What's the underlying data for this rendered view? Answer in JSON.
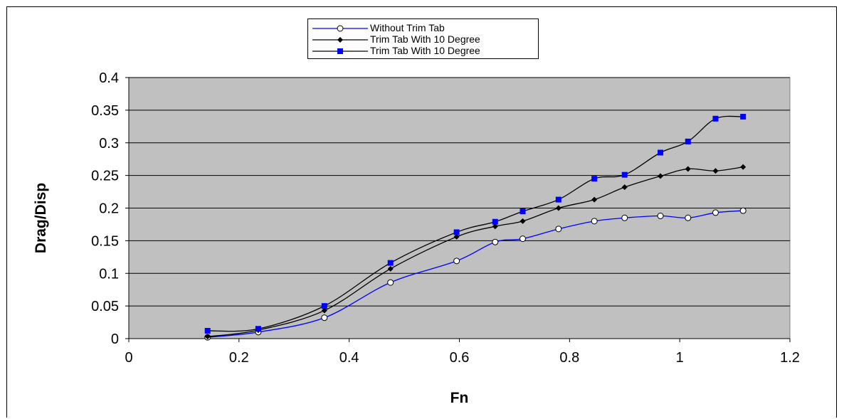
{
  "chart_data": {
    "type": "line",
    "xlabel": "Fn",
    "ylabel": "Drag/Disp",
    "xlim": [
      0,
      1.2
    ],
    "ylim": [
      0,
      0.4
    ],
    "x_ticks": [
      "0",
      "0.2",
      "0.4",
      "0.6",
      "0.8",
      "1",
      "1.2"
    ],
    "y_ticks": [
      "0",
      "0.05",
      "0.1",
      "0.15",
      "0.2",
      "0.25",
      "0.3",
      "0.35",
      "0.4"
    ],
    "plot_background": "#c0c0c0",
    "gridlines": "horizontal",
    "legend_position": "top-center",
    "series": [
      {
        "name": "Without Trim Tab",
        "color": "#0000ff",
        "marker": "open-circle",
        "x": [
          0.143,
          0.235,
          0.355,
          0.475,
          0.595,
          0.665,
          0.715,
          0.78,
          0.845,
          0.9,
          0.965,
          1.015,
          1.065,
          1.115
        ],
        "y": [
          0.002,
          0.01,
          0.032,
          0.086,
          0.119,
          0.148,
          0.153,
          0.168,
          0.18,
          0.185,
          0.188,
          0.185,
          0.193,
          0.196
        ]
      },
      {
        "name": "Trim Tab With 10 Degree",
        "color": "#000000",
        "marker": "diamond",
        "x": [
          0.143,
          0.235,
          0.355,
          0.475,
          0.595,
          0.665,
          0.715,
          0.78,
          0.845,
          0.9,
          0.965,
          1.015,
          1.065,
          1.115
        ],
        "y": [
          0.003,
          0.013,
          0.043,
          0.107,
          0.156,
          0.172,
          0.18,
          0.2,
          0.213,
          0.232,
          0.249,
          0.26,
          0.257,
          0.263
        ]
      },
      {
        "name": "Trim Tab With 10 Degree",
        "color": "#000000",
        "marker_color": "#0000ff",
        "marker": "square",
        "x": [
          0.143,
          0.235,
          0.355,
          0.475,
          0.595,
          0.665,
          0.715,
          0.78,
          0.845,
          0.9,
          0.965,
          1.015,
          1.065,
          1.115
        ],
        "y": [
          0.012,
          0.015,
          0.05,
          0.116,
          0.163,
          0.179,
          0.195,
          0.213,
          0.245,
          0.251,
          0.285,
          0.302,
          0.337,
          0.34
        ]
      }
    ]
  }
}
